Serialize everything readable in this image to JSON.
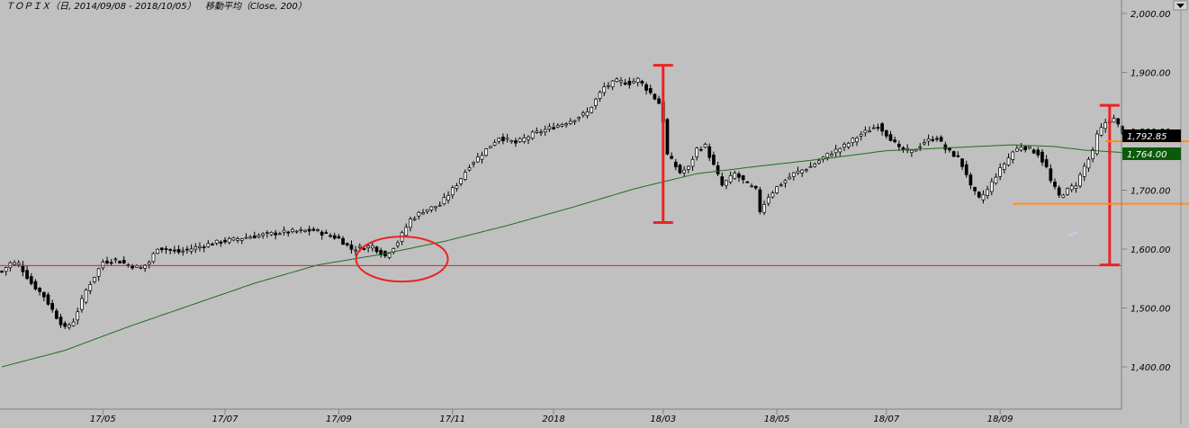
{
  "header": {
    "title": "ＴＯＰＩＸ（日, 2014/09/08 - 2018/10/05）",
    "ma_label": "移動平均（Close, 200）"
  },
  "colors": {
    "background": "#c0c0c0",
    "candle": "#000000",
    "ma_line": "#1e6e1e",
    "support_line": "#e02020",
    "annotation": "#ee2222",
    "orange_line": "#ff8c20",
    "price_badge": "#000000",
    "ma_badge": "#0a5a0a"
  },
  "chart_data": {
    "type": "candlestick",
    "x_ticks": [
      "17/05",
      "17/07",
      "17/09",
      "17/11",
      "2018",
      "18/03",
      "18/05",
      "18/07",
      "18/09"
    ],
    "y_ticks": [
      "2,000.00",
      "1,900.00",
      "1,800.00",
      "1,700.00",
      "1,600.00",
      "1,500.00",
      "1,400.00"
    ],
    "ylim": [
      1350,
      2015
    ],
    "close_anchors": [
      [
        0,
        1562
      ],
      [
        2,
        1576
      ],
      [
        4,
        1575
      ],
      [
        7,
        1542
      ],
      [
        10,
        1520
      ],
      [
        13,
        1485
      ],
      [
        15,
        1465
      ],
      [
        17,
        1478
      ],
      [
        20,
        1530
      ],
      [
        24,
        1578
      ],
      [
        27,
        1582
      ],
      [
        30,
        1573
      ],
      [
        33,
        1568
      ],
      [
        35,
        1578
      ],
      [
        37,
        1603
      ],
      [
        42,
        1595
      ],
      [
        50,
        1610
      ],
      [
        58,
        1620
      ],
      [
        66,
        1628
      ],
      [
        74,
        1632
      ],
      [
        80,
        1618
      ],
      [
        83,
        1600
      ],
      [
        88,
        1605
      ],
      [
        91,
        1588
      ],
      [
        94,
        1612
      ],
      [
        97,
        1650
      ],
      [
        100,
        1665
      ],
      [
        104,
        1675
      ],
      [
        108,
        1710
      ],
      [
        111,
        1742
      ],
      [
        114,
        1762
      ],
      [
        118,
        1790
      ],
      [
        122,
        1780
      ],
      [
        126,
        1795
      ],
      [
        130,
        1805
      ],
      [
        135,
        1818
      ],
      [
        139,
        1832
      ],
      [
        143,
        1875
      ],
      [
        146,
        1885
      ],
      [
        149,
        1882
      ],
      [
        151,
        1888
      ],
      [
        154,
        1865
      ],
      [
        156,
        1848
      ],
      [
        157,
        1818
      ],
      [
        158,
        1760
      ],
      [
        161,
        1730
      ],
      [
        163,
        1738
      ],
      [
        165,
        1770
      ],
      [
        167,
        1775
      ],
      [
        171,
        1708
      ],
      [
        174,
        1728
      ],
      [
        177,
        1710
      ],
      [
        179,
        1700
      ],
      [
        180,
        1665
      ],
      [
        182,
        1690
      ],
      [
        184,
        1705
      ],
      [
        188,
        1728
      ],
      [
        192,
        1740
      ],
      [
        196,
        1760
      ],
      [
        200,
        1775
      ],
      [
        204,
        1795
      ],
      [
        208,
        1810
      ],
      [
        211,
        1788
      ],
      [
        213,
        1770
      ],
      [
        216,
        1765
      ],
      [
        219,
        1782
      ],
      [
        222,
        1790
      ],
      [
        224,
        1770
      ],
      [
        227,
        1755
      ],
      [
        229,
        1728
      ],
      [
        230,
        1705
      ],
      [
        232,
        1685
      ],
      [
        234,
        1700
      ],
      [
        236,
        1725
      ],
      [
        238,
        1745
      ],
      [
        240,
        1765
      ],
      [
        242,
        1775
      ],
      [
        244,
        1770
      ],
      [
        246,
        1762
      ],
      [
        248,
        1738
      ],
      [
        249,
        1715
      ],
      [
        251,
        1690
      ],
      [
        253,
        1700
      ],
      [
        255,
        1710
      ],
      [
        257,
        1740
      ],
      [
        259,
        1765
      ],
      [
        260,
        1793
      ],
      [
        262,
        1815
      ],
      [
        264,
        1820
      ],
      [
        265,
        1810
      ],
      [
        266,
        1800
      ]
    ],
    "ma_anchors": [
      [
        0,
        1400
      ],
      [
        15,
        1428
      ],
      [
        30,
        1468
      ],
      [
        45,
        1505
      ],
      [
        60,
        1542
      ],
      [
        75,
        1573
      ],
      [
        90,
        1591
      ],
      [
        105,
        1613
      ],
      [
        120,
        1640
      ],
      [
        135,
        1670
      ],
      [
        150,
        1702
      ],
      [
        165,
        1728
      ],
      [
        180,
        1741
      ],
      [
        195,
        1753
      ],
      [
        210,
        1767
      ],
      [
        225,
        1772
      ],
      [
        240,
        1777
      ],
      [
        250,
        1774
      ],
      [
        257,
        1768
      ],
      [
        266,
        1764
      ]
    ],
    "support_level": 1572,
    "circle_center": [
      95,
      1583
    ],
    "bracket_1": {
      "x": 157,
      "high": 1912,
      "low": 1645
    },
    "bracket_2": {
      "x": 263,
      "high": 1844,
      "low": 1573
    },
    "orange_line_upper": {
      "x_start": 262,
      "x_end": 290,
      "y": 1783
    },
    "orange_line_lower": {
      "x_start": 240,
      "x_end": 322,
      "y": 1677
    },
    "last_price": {
      "value": 1792.85,
      "label": "1,792.85"
    },
    "ma_value": {
      "value": 1764.0,
      "label": "1,764.00"
    }
  }
}
